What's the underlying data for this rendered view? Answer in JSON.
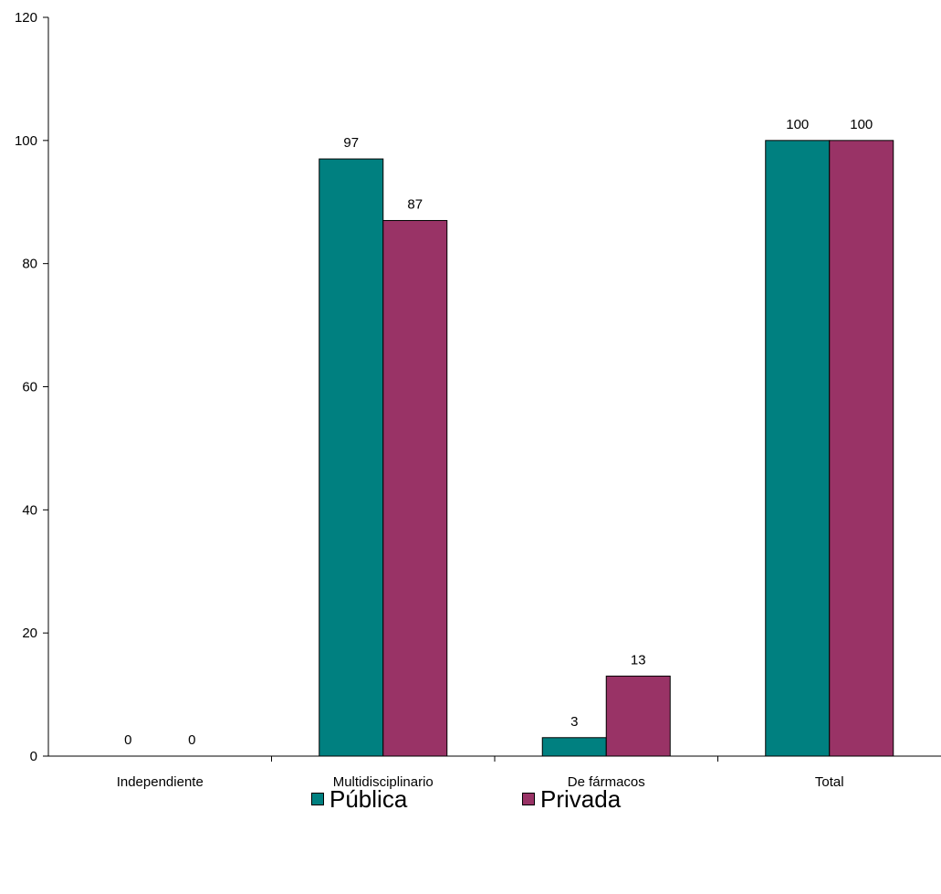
{
  "chart_data": {
    "type": "bar",
    "categories": [
      "Independiente",
      "Multidisciplinario",
      "De fármacos",
      "Total"
    ],
    "series": [
      {
        "name": "Pública",
        "values": [
          0,
          97,
          3,
          100
        ],
        "color": "#008080"
      },
      {
        "name": "Privada",
        "values": [
          0,
          87,
          13,
          100
        ],
        "color": "#993366"
      }
    ],
    "data_labels": [
      [
        "0",
        "97",
        "3",
        "100"
      ],
      [
        "0",
        "87",
        "13",
        "100"
      ]
    ],
    "y_ticks": [
      "0",
      "20",
      "40",
      "60",
      "80",
      "100",
      "120"
    ],
    "ylim": [
      0,
      120
    ],
    "grid": false,
    "legend_position": "bottom-center",
    "title": "",
    "xlabel": "",
    "ylabel": ""
  }
}
